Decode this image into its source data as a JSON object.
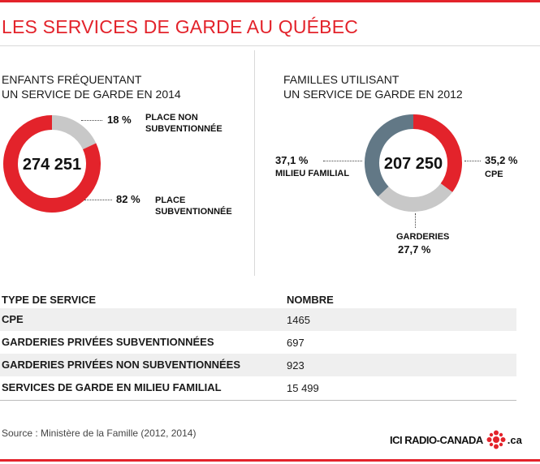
{
  "title": "LES SERVICES DE GARDE AU QUÉBEC",
  "colors": {
    "accent": "#e3232b",
    "grey_light": "#c8c8c8",
    "slate": "#627886"
  },
  "left_panel": {
    "heading_line1": "ENFANTS FRÉQUENTANT",
    "heading_line2": "UN SERVICE DE GARDE EN 2014",
    "total": "274 251",
    "slice_a": {
      "pct": "18 %",
      "label_line1": "PLACE NON",
      "label_line2": "SUBVENTIONNÉE"
    },
    "slice_b": {
      "pct": "82 %",
      "label_line1": "PLACE",
      "label_line2": "SUBVENTIONNÉE"
    }
  },
  "right_panel": {
    "heading_line1": "FAMILLES UTILISANT",
    "heading_line2": "UN SERVICE DE GARDE EN 2012",
    "total": "207 250",
    "slice_cpe": {
      "pct": "35,2 %",
      "label": "CPE"
    },
    "slice_milieu": {
      "pct": "37,1 %",
      "label": "MILIEU FAMILIAL"
    },
    "slice_garderies": {
      "pct": "27,7 %",
      "label": "GARDERIES"
    }
  },
  "chart_data": [
    {
      "type": "pie",
      "title": "ENFANTS FRÉQUENTANT UN SERVICE DE GARDE EN 2014",
      "center_value": "274 251",
      "categories": [
        "PLACE NON SUBVENTIONNÉE",
        "PLACE SUBVENTIONNÉE"
      ],
      "values": [
        18,
        82
      ],
      "colors": [
        "#c8c8c8",
        "#e3232b"
      ]
    },
    {
      "type": "pie",
      "title": "FAMILLES UTILISANT UN SERVICE DE GARDE EN 2012",
      "center_value": "207 250",
      "categories": [
        "CPE",
        "GARDERIES",
        "MILIEU FAMILIAL"
      ],
      "values": [
        35.2,
        27.7,
        37.1
      ],
      "colors": [
        "#e3232b",
        "#c8c8c8",
        "#627886"
      ]
    },
    {
      "type": "table",
      "columns": [
        "TYPE DE SERVICE",
        "NOMBRE"
      ],
      "rows": [
        [
          "CPE",
          "1465"
        ],
        [
          "GARDERIES PRIVÉES SUBVENTIONNÉES",
          "697"
        ],
        [
          "GARDERIES PRIVÉES NON SUBVENTIONNÉES",
          "923"
        ],
        [
          "SERVICES DE GARDE EN MILIEU FAMILIAL",
          "15 499"
        ]
      ]
    }
  ],
  "table": {
    "col1": "TYPE DE SERVICE",
    "col2": "NOMBRE",
    "rows": [
      {
        "type": "CPE",
        "nombre": "1465"
      },
      {
        "type": "GARDERIES PRIVÉES SUBVENTIONNÉES",
        "nombre": "697"
      },
      {
        "type": "GARDERIES PRIVÉES NON SUBVENTIONNÉES",
        "nombre": "923"
      },
      {
        "type": "SERVICES DE GARDE EN MILIEU FAMILIAL",
        "nombre": "15 499"
      }
    ]
  },
  "source": "Source : Ministère de la Famille (2012, 2014)",
  "logo": {
    "text": "ICI RADIO-CANADA",
    "suffix": ".ca"
  }
}
